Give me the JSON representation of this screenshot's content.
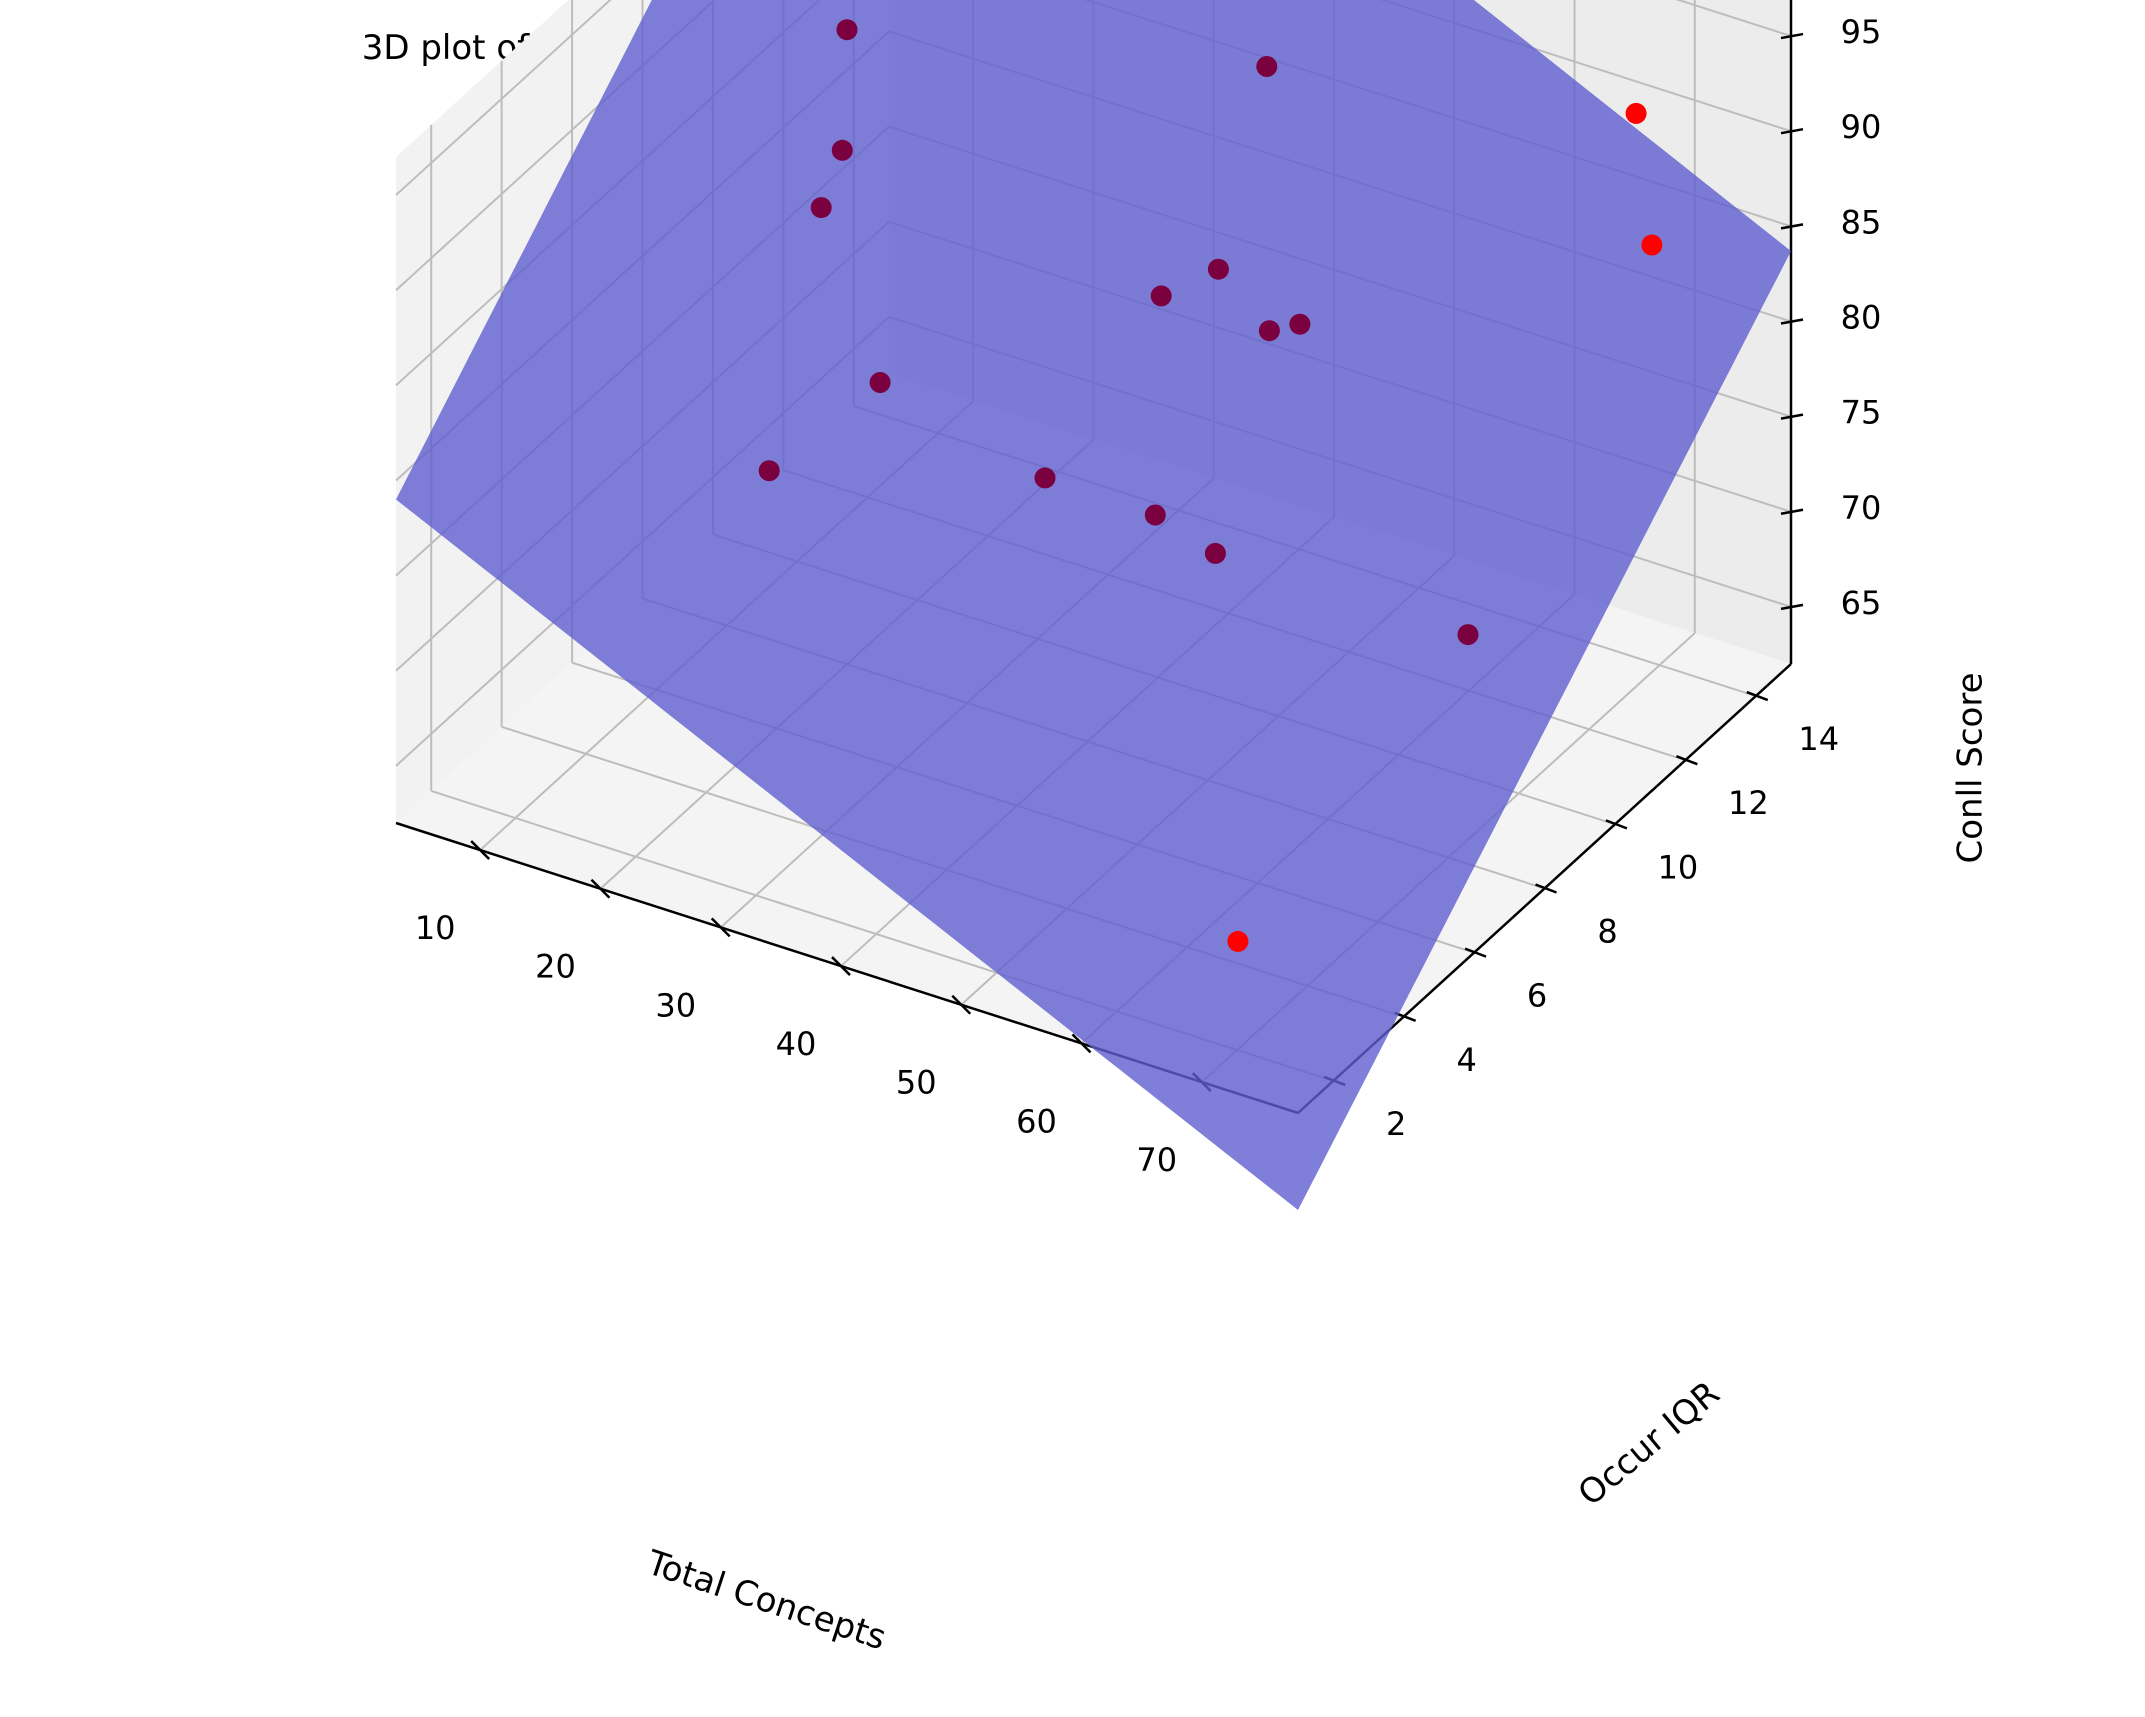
{
  "chart_data": {
    "type": "scatter",
    "title": "3D plot of CoNLL Score against Total Concepts and Occur IQR for NLP using GPT-3.5",
    "xlabel": "Total Concepts",
    "ylabel": "Occur IQR",
    "zlabel": "Conll Score",
    "x_ticks": [
      10,
      20,
      30,
      40,
      50,
      60,
      70
    ],
    "y_ticks": [
      2,
      4,
      6,
      8,
      10,
      12,
      14
    ],
    "z_ticks": [
      65,
      70,
      75,
      80,
      85,
      90,
      95
    ],
    "xlim": [
      3,
      78
    ],
    "ylim": [
      1,
      15
    ],
    "zlim": [
      62,
      97
    ],
    "grid": true,
    "points": [
      {
        "x": 8,
        "y": 12.1,
        "z": 86
      },
      {
        "x": 18,
        "y": 14.5,
        "z": 88
      },
      {
        "x": 12,
        "y": 10.6,
        "z": 83
      },
      {
        "x": 12,
        "y": 10.0,
        "z": 81
      },
      {
        "x": 35,
        "y": 14.8,
        "z": 85
      },
      {
        "x": 21,
        "y": 8.6,
        "z": 76
      },
      {
        "x": 15,
        "y": 7.5,
        "z": 72
      },
      {
        "x": 35,
        "y": 8.5,
        "z": 74
      },
      {
        "x": 35,
        "y": 11.8,
        "z": 78
      },
      {
        "x": 38,
        "y": 12.4,
        "z": 79
      },
      {
        "x": 44,
        "y": 11.8,
        "z": 78
      },
      {
        "x": 43,
        "y": 8.9,
        "z": 73
      },
      {
        "x": 48,
        "y": 8.9,
        "z": 72
      },
      {
        "x": 48,
        "y": 11.3,
        "z": 80
      },
      {
        "x": 69,
        "y": 8.9,
        "z": 72
      },
      {
        "x": 66,
        "y": 14.7,
        "z": 89
      },
      {
        "x": 72,
        "y": 13.1,
        "z": 86
      },
      {
        "x": 73,
        "y": 1.0,
        "z": 70
      }
    ],
    "plane": {
      "z_at_xmin_ymin": 79.0,
      "z_at_xmax_ymin": 56.9,
      "z_at_xmin_ymax": 106.0,
      "z_at_xmax_ymax": 83.7
    },
    "colors": {
      "points": "#ff0000",
      "points_under_plane": "#7a0040",
      "plane": "#5f5fd0"
    }
  }
}
